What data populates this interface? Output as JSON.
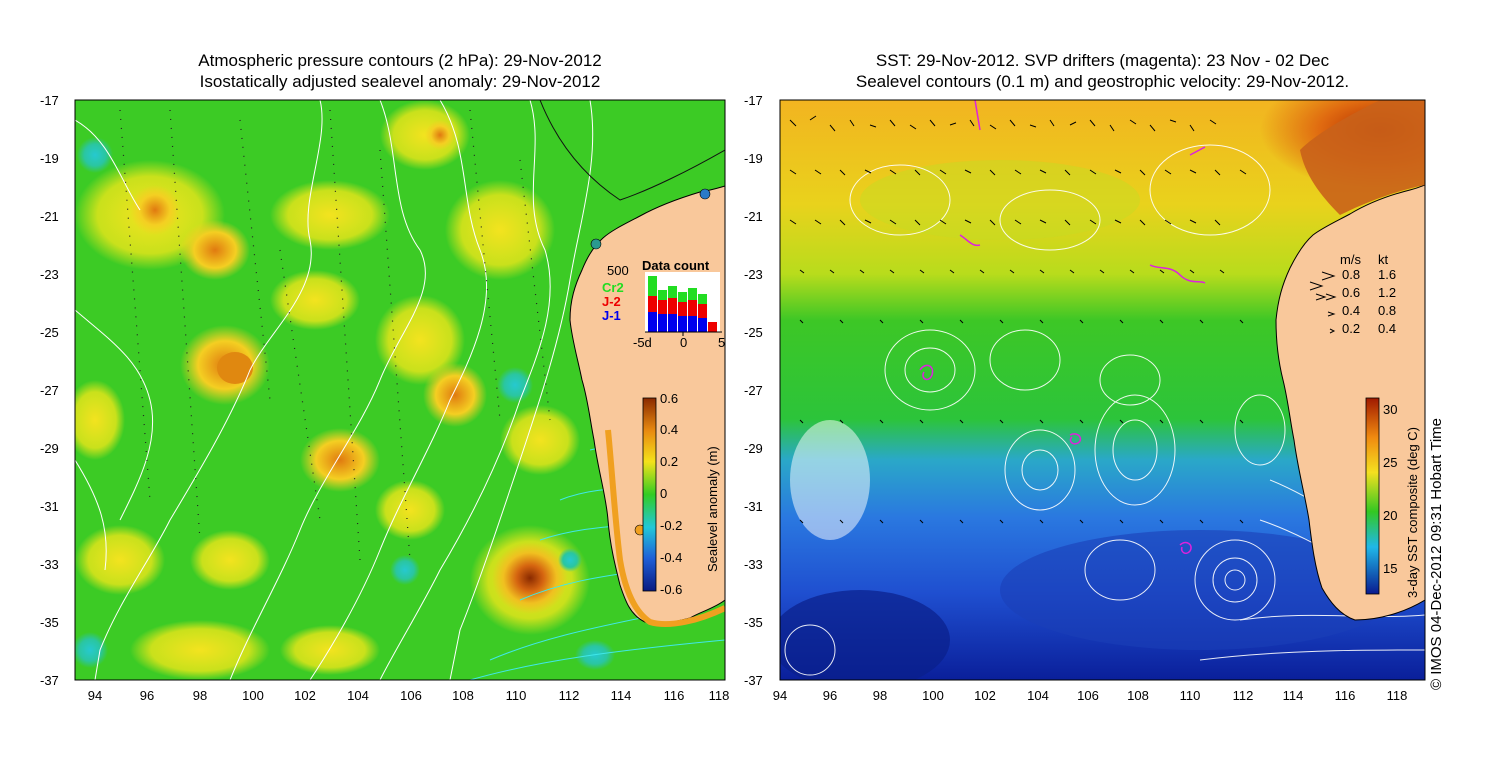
{
  "left_panel": {
    "title_line1": "Atmospheric pressure contours (2 hPa): 29-Nov-2012",
    "title_line2": "Isostatically adjusted sealevel anomaly: 29-Nov-2012",
    "y_ticks": [
      "-17",
      "-19",
      "-21",
      "-23",
      "-25",
      "-27",
      "-29",
      "-31",
      "-33",
      "-35",
      "-37"
    ],
    "x_ticks": [
      "94",
      "96",
      "98",
      "100",
      "102",
      "104",
      "106",
      "108",
      "110",
      "112",
      "114",
      "116",
      "118"
    ],
    "colorbar": {
      "label": "Sealevel anomaly (m)",
      "ticks": [
        "0.6",
        "0.4",
        "0.2",
        "0",
        "-0.2",
        "-0.4",
        "-0.6"
      ]
    },
    "data_count": {
      "title": "Data count",
      "scale_label": "500",
      "series_labels": [
        "Cr2",
        "J-2",
        "J-1"
      ],
      "series_colors": [
        "#22dd22",
        "#ee0000",
        "#0000ee"
      ],
      "x_ticks": [
        "-5d",
        "0",
        "5"
      ]
    }
  },
  "right_panel": {
    "title_line1": "SST: 29-Nov-2012. SVP drifters (magenta): 23 Nov - 02 Dec",
    "title_line2": "Sealevel contours (0.1 m) and geostrophic velocity: 29-Nov-2012.",
    "y_ticks": [
      "-17",
      "-19",
      "-21",
      "-23",
      "-25",
      "-27",
      "-29",
      "-31",
      "-33",
      "-35",
      "-37"
    ],
    "x_ticks": [
      "94",
      "96",
      "98",
      "100",
      "102",
      "104",
      "106",
      "108",
      "110",
      "112",
      "114",
      "116",
      "118"
    ],
    "colorbar": {
      "label": "3-day SST composite (deg C)",
      "ticks": [
        "30",
        "25",
        "20",
        "15"
      ]
    },
    "velocity_legend": {
      "header_ms": "m/s",
      "header_kt": "kt",
      "rows": [
        {
          "ms": "0.8",
          "kt": "1.6"
        },
        {
          "ms": "0.6",
          "kt": "1.2"
        },
        {
          "ms": "0.4",
          "kt": "0.8"
        },
        {
          "ms": "0.2",
          "kt": "0.4"
        }
      ]
    }
  },
  "copyright": "© IMOS 04-Dec-2012 09:31 Hobart Time",
  "colors": {
    "land": "#f9c89b",
    "ocean_green": "#33cc22",
    "sst_orange": "#f2b020",
    "sst_blue": "#2a6fd6",
    "contour": "#ffffff",
    "coast": "#000000"
  }
}
